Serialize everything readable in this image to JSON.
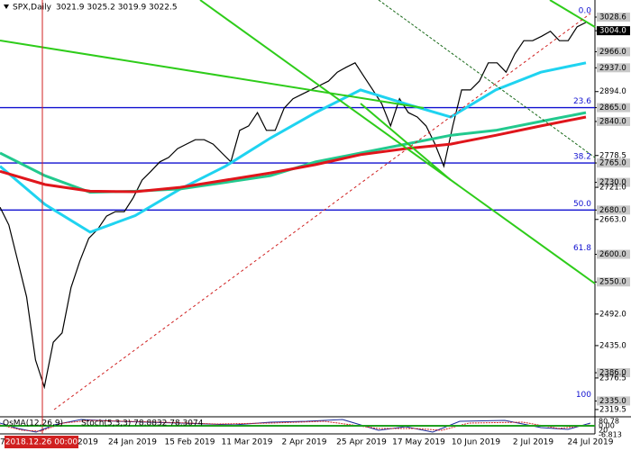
{
  "chart_data": {
    "type": "line",
    "title": "SPX,Daily",
    "ohlc_header": "3021.9 3025.2 3019.9 3022.5",
    "ylim": [
      2308,
      3059.5
    ],
    "yticks": [
      {
        "value": 3028.6,
        "label": "3028.6"
      },
      {
        "value": 3004.0,
        "label": "3004.0"
      },
      {
        "value": 2966.0,
        "label": "2966.0"
      },
      {
        "value": 2937.0,
        "label": "2937.0"
      },
      {
        "value": 2894.0,
        "label": "2894.0"
      },
      {
        "value": 2865.0,
        "label": "2865.0"
      },
      {
        "value": 2840.0,
        "label": "2840.0"
      },
      {
        "value": 2778.5,
        "label": "2778.5"
      },
      {
        "value": 2765.0,
        "label": "2765.0"
      },
      {
        "value": 2730.0,
        "label": "2730.0"
      },
      {
        "value": 2721.0,
        "label": "2721.0"
      },
      {
        "value": 2680.0,
        "label": "2680.0"
      },
      {
        "value": 2663.0,
        "label": "2663.0"
      },
      {
        "value": 2600.0,
        "label": "2600.0"
      },
      {
        "value": 2550.0,
        "label": "2550.0"
      },
      {
        "value": 2492.0,
        "label": "2492.0"
      },
      {
        "value": 2435.0,
        "label": "2435.0"
      },
      {
        "value": 2386.0,
        "label": "2386.0"
      },
      {
        "value": 2376.5,
        "label": "2376.5"
      },
      {
        "value": 2335.0,
        "label": "2335.0"
      },
      {
        "value": 2319.5,
        "label": "2319.5"
      }
    ],
    "boxed_levels": [
      3028.6,
      3004.0,
      2966.0,
      2937.0,
      2865.0,
      2840.0,
      2765.0,
      2730.0,
      2680.0,
      2600.0,
      2550.0,
      2386.0,
      2335.0
    ],
    "fib_levels": [
      {
        "ratio": "0.0",
        "price": 3028.6
      },
      {
        "ratio": "23.6",
        "price": 2865.0
      },
      {
        "ratio": "38.2",
        "price": 2765.0
      },
      {
        "ratio": "50.0",
        "price": 2680.0
      },
      {
        "ratio": "61.8",
        "price": 2600.0
      },
      {
        "ratio": "100",
        "price": 2335.0
      }
    ],
    "blue_levels": [
      2865.0,
      2765.0,
      2680.0
    ],
    "series": [
      {
        "name": "SPX",
        "color": "#000000",
        "values": [
          2685,
          2653,
          2588,
          2523,
          2409,
          2360,
          2441,
          2458,
          2540,
          2588,
          2629,
          2645,
          2669,
          2677,
          2677,
          2702,
          2734,
          2750,
          2767,
          2775,
          2791,
          2799,
          2807,
          2807,
          2799,
          2783,
          2767,
          2824,
          2832,
          2856,
          2824,
          2824,
          2864,
          2881,
          2889,
          2897,
          2905,
          2913,
          2929,
          2938,
          2946,
          2921,
          2897,
          2872,
          2832,
          2881,
          2856,
          2848,
          2832,
          2799,
          2759,
          2832,
          2897,
          2897,
          2913,
          2946,
          2946,
          2929,
          2962,
          2986,
          2986,
          2994,
          3003,
          2986,
          2986,
          3011,
          3019
        ]
      },
      {
        "name": "MA50",
        "color": "#1fd3f0",
        "values": [
          2759,
          2690,
          2640,
          2670,
          2718,
          2759,
          2810,
          2856,
          2897,
          2872,
          2848,
          2897,
          2929,
          2946
        ]
      },
      {
        "name": "MA100",
        "color": "#22c98e",
        "values": [
          2783,
          2742,
          2712,
          2714,
          2718,
          2730,
          2742,
          2767,
          2783,
          2799,
          2815,
          2824,
          2840,
          2856
        ]
      },
      {
        "name": "MA200",
        "color": "#e0151b",
        "values": [
          2750,
          2726,
          2714,
          2713,
          2721,
          2734,
          2747,
          2762,
          2780,
          2791,
          2799,
          2815,
          2832,
          2848
        ]
      }
    ],
    "crosshair_date": "2018.12.26 00:00",
    "date_fragments": [
      "7",
      "2019"
    ],
    "date_labels": [
      "24 Jan 2019",
      "15 Feb 2019",
      "11 Mar 2019",
      "2 Apr 2019",
      "25 Apr 2019",
      "17 May 2019",
      "10 Jun 2019",
      "2 Jul 2019",
      "24 Jul 2019"
    ],
    "oscillator": {
      "title": "OsMA(12,26,9)",
      "stoch": "Stoch(5,3,3) 78.8832 78.3074",
      "axis_labels": [
        "80.78",
        "0.00",
        "20",
        "-6.813"
      ]
    }
  }
}
